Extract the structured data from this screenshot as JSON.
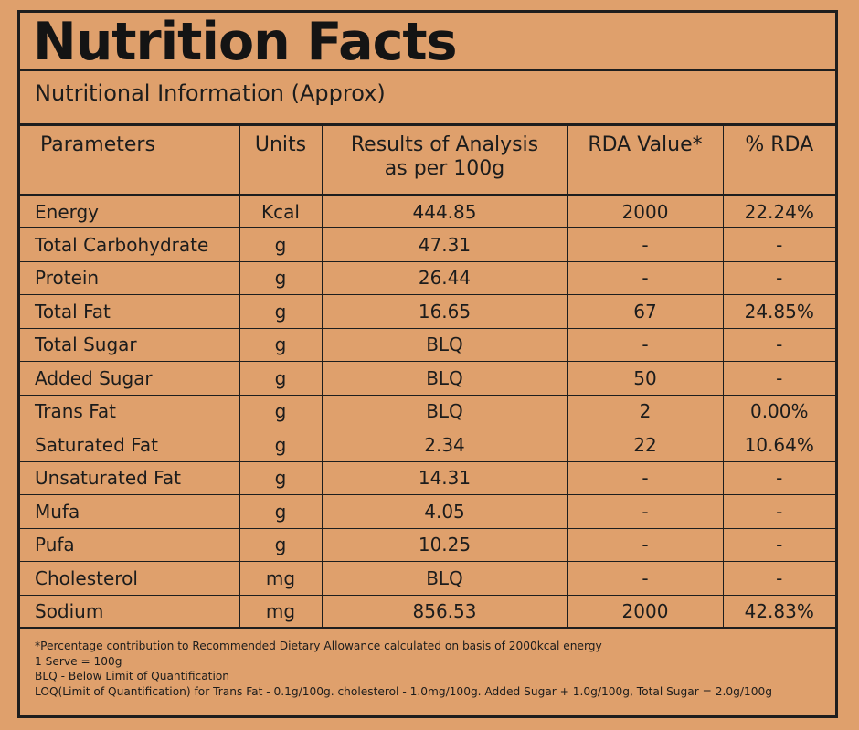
{
  "title": "Nutrition Facts",
  "subtitle": "Nutritional Information (Approx)",
  "table": {
    "headers": [
      "Parameters",
      "Units",
      "Results of Analysis\nas per 100g",
      "RDA Value*",
      "% RDA"
    ],
    "rows": [
      {
        "parameter": "Energy",
        "unit": "Kcal",
        "result": "444.85",
        "rda": "2000",
        "pct": "22.24%"
      },
      {
        "parameter": "Total Carbohydrate",
        "unit": "g",
        "result": "47.31",
        "rda": "-",
        "pct": "-"
      },
      {
        "parameter": "Protein",
        "unit": "g",
        "result": "26.44",
        "rda": "-",
        "pct": "-"
      },
      {
        "parameter": "Total Fat",
        "unit": "g",
        "result": "16.65",
        "rda": "67",
        "pct": "24.85%"
      },
      {
        "parameter": "Total Sugar",
        "unit": "g",
        "result": "BLQ",
        "rda": "-",
        "pct": "-"
      },
      {
        "parameter": "Added Sugar",
        "unit": "g",
        "result": "BLQ",
        "rda": "50",
        "pct": "-"
      },
      {
        "parameter": "Trans Fat",
        "unit": "g",
        "result": "BLQ",
        "rda": "2",
        "pct": "0.00%"
      },
      {
        "parameter": "Saturated Fat",
        "unit": "g",
        "result": "2.34",
        "rda": "22",
        "pct": "10.64%"
      },
      {
        "parameter": "Unsaturated Fat",
        "unit": "g",
        "result": "14.31",
        "rda": "-",
        "pct": "-"
      },
      {
        "parameter": "Mufa",
        "unit": "g",
        "result": "4.05",
        "rda": "-",
        "pct": "-"
      },
      {
        "parameter": "Pufa",
        "unit": "g",
        "result": "10.25",
        "rda": "-",
        "pct": "-"
      },
      {
        "parameter": "Cholesterol",
        "unit": "mg",
        "result": "BLQ",
        "rda": "-",
        "pct": "-"
      },
      {
        "parameter": "Sodium",
        "unit": "mg",
        "result": "856.53",
        "rda": "2000",
        "pct": "42.83%"
      }
    ]
  },
  "footnotes": [
    "*Percentage contribution to Recommended Dietary Allowance calculated on basis of 2000kcal energy",
    "1 Serve = 100g",
    "BLQ - Below Limit of Quantification",
    "LOQ(Limit of Quantification) for Trans Fat - 0.1g/100g. cholesterol - 1.0mg/100g. Added Sugar + 1.0g/100g, Total Sugar = 2.0g/100g"
  ],
  "colors": {
    "background": "#dfa06c",
    "ink": "#1c1c1c"
  }
}
